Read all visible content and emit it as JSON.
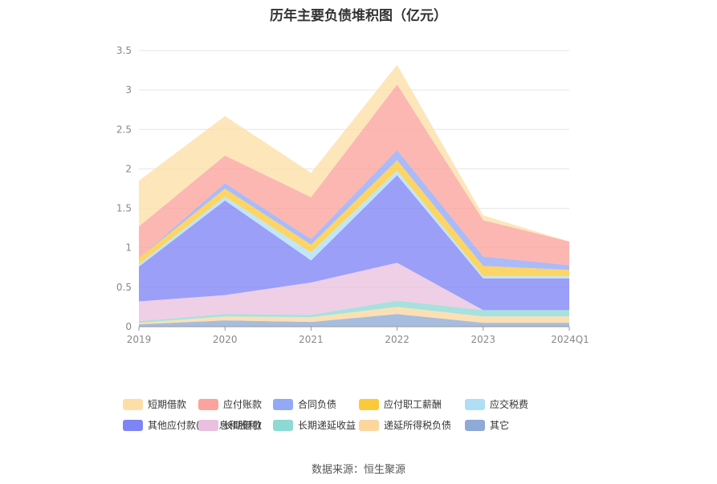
{
  "chart_data": {
    "type": "area",
    "title": "历年主要负债堆积图（亿元）",
    "stacked": true,
    "categories": [
      "2019",
      "2020",
      "2021",
      "2022",
      "2023",
      "2024Q1"
    ],
    "ylim": [
      0,
      3.5
    ],
    "yticks": [
      "0",
      "0.5",
      "1",
      "1.5",
      "2",
      "2.5",
      "3",
      "3.5"
    ],
    "grid": true,
    "legend_position": "bottom",
    "series": [
      {
        "name": "其它",
        "color": "#8eaad6",
        "values": [
          0.03,
          0.08,
          0.06,
          0.16,
          0.05,
          0.05
        ]
      },
      {
        "name": "递延所得税负债",
        "color": "#fbd79e",
        "values": [
          0.02,
          0.05,
          0.06,
          0.09,
          0.08,
          0.08
        ]
      },
      {
        "name": "长期递延收益",
        "color": "#8ed9d4",
        "values": [
          0.02,
          0.03,
          0.03,
          0.08,
          0.08,
          0.08
        ]
      },
      {
        "name": "长期借款",
        "color": "#e9c1de",
        "values": [
          0.25,
          0.24,
          0.41,
          0.48,
          0,
          0
        ]
      },
      {
        "name": "其他应付款(含利息和股利)",
        "color": "#7f84f5",
        "values": [
          0.44,
          1.2,
          0.28,
          1.11,
          0.4,
          0.4
        ]
      },
      {
        "name": "应交税费",
        "color": "#aedff7",
        "values": [
          0.03,
          0.05,
          0.1,
          0.06,
          0.03,
          0.03
        ]
      },
      {
        "name": "应付职工薪酬",
        "color": "#fcc93a",
        "values": [
          0.08,
          0.1,
          0.1,
          0.13,
          0.13,
          0.08
        ]
      },
      {
        "name": "合同负债",
        "color": "#93a8f6",
        "values": [
          0,
          0.07,
          0.07,
          0.13,
          0.12,
          0.06
        ]
      },
      {
        "name": "应付账款",
        "color": "#fba39c",
        "values": [
          0.4,
          0.35,
          0.53,
          0.83,
          0.46,
          0.3
        ]
      },
      {
        "name": "短期借款",
        "color": "#fddfa6",
        "values": [
          0.58,
          0.5,
          0.31,
          0.25,
          0.06,
          0
        ]
      }
    ]
  },
  "legend": [
    {
      "label": "短期借款",
      "color": "#fddfa6"
    },
    {
      "label": "应付账款",
      "color": "#fba39c"
    },
    {
      "label": "合同负债",
      "color": "#93a8f6"
    },
    {
      "label": "应付职工薪酬",
      "color": "#fcc93a"
    },
    {
      "label": "应交税费",
      "color": "#aedff7"
    },
    {
      "label": "其他应付款(含利息和股利)",
      "color": "#7f84f5"
    },
    {
      "label": "长期借款",
      "color": "#e9c1de"
    },
    {
      "label": "长期递延收益",
      "color": "#8ed9d4"
    },
    {
      "label": "递延所得税负债",
      "color": "#fbd79e"
    },
    {
      "label": "其它",
      "color": "#8eaad6"
    }
  ],
  "source": "数据来源：恒生聚源"
}
